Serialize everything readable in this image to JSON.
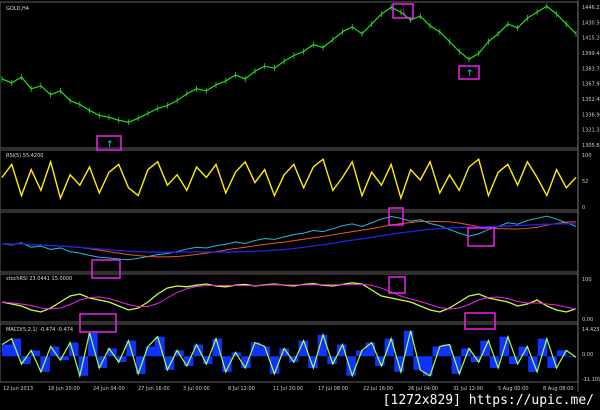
{
  "symbol": "GOLD,H4",
  "watermark": "[1272x829] https://upic.me/",
  "colors": {
    "price": "#22dd22",
    "rsi": "#ffee00",
    "signal_box": "#ee22ee",
    "ma_fast": "#22bbdd",
    "ma_mid": "#ee5522",
    "ma_slow": "#2222ee",
    "stoch_k": "#ccff33",
    "stoch_d": "#ee22ee",
    "macd_hist": "#1133ff",
    "macd_line": "#aaff44"
  },
  "chart_data": [
    {
      "type": "line",
      "title": "GOLD,H4",
      "yticks": [
        "1446.25",
        "1430.50",
        "1415.20",
        "1399.45",
        "1383.70",
        "1367.95",
        "1352.45",
        "1336.90",
        "1321.35",
        "1305.85"
      ],
      "ylim": [
        1305.85,
        1446.25
      ],
      "values": [
        1372,
        1368,
        1374,
        1362,
        1365,
        1356,
        1360,
        1350,
        1346,
        1340,
        1335,
        1333,
        1330,
        1328,
        1332,
        1337,
        1342,
        1345,
        1350,
        1357,
        1362,
        1360,
        1366,
        1370,
        1376,
        1372,
        1380,
        1385,
        1383,
        1390,
        1396,
        1400,
        1407,
        1404,
        1412,
        1420,
        1425,
        1418,
        1428,
        1438,
        1445,
        1440,
        1432,
        1436,
        1426,
        1420,
        1410,
        1400,
        1392,
        1398,
        1410,
        1418,
        1428,
        1424,
        1434,
        1440,
        1446,
        1438,
        1428,
        1418
      ]
    },
    {
      "type": "line",
      "title": "RSI(5) 55.4200",
      "yticks": [
        "100",
        "52",
        "0"
      ],
      "ylim": [
        0,
        100
      ],
      "values": [
        55,
        80,
        20,
        70,
        30,
        85,
        15,
        60,
        40,
        75,
        25,
        65,
        80,
        35,
        20,
        70,
        85,
        40,
        60,
        30,
        75,
        55,
        80,
        25,
        65,
        85,
        45,
        70,
        20,
        60,
        80,
        35,
        75,
        90,
        30,
        55,
        85,
        20,
        65,
        40,
        80,
        15,
        70,
        50,
        85,
        25,
        60,
        30,
        75,
        90,
        20,
        65,
        80,
        40,
        85,
        55,
        20,
        70,
        35,
        55
      ]
    },
    {
      "type": "line",
      "yticks": [],
      "values": []
    },
    {
      "type": "line",
      "title": "stochRSI 23.0441 15.0000",
      "yticks": [
        "100",
        "0.00"
      ],
      "ylim": [
        0,
        100
      ],
      "values": [
        40,
        35,
        30,
        20,
        15,
        25,
        40,
        55,
        60,
        50,
        45,
        40,
        30,
        20,
        25,
        40,
        60,
        75,
        80,
        78,
        82,
        85,
        80,
        78,
        82,
        84,
        80,
        83,
        85,
        82,
        80,
        84,
        86,
        82,
        80,
        84,
        88,
        85,
        70,
        55,
        50,
        45,
        40,
        30,
        20,
        15,
        25,
        40,
        55,
        60,
        50,
        45,
        40,
        30,
        35,
        45,
        30,
        20,
        15,
        23
      ]
    },
    {
      "type": "bar",
      "title": "MACD(5,2,1) -0.474 -0.474",
      "yticks": [
        "14.425",
        "0.00",
        "-11.109"
      ],
      "ylim": [
        -11.109,
        14.425
      ],
      "values": [
        6,
        9,
        -4,
        3,
        -8,
        5,
        -2,
        7,
        -10,
        12,
        -6,
        4,
        -3,
        8,
        -9,
        5,
        10,
        -7,
        3,
        -5,
        6,
        -4,
        9,
        -8,
        2,
        -6,
        7,
        5,
        -9,
        4,
        -3,
        8,
        -6,
        11,
        -4,
        6,
        -10,
        3,
        7,
        -5,
        9,
        -8,
        13,
        -7,
        -10,
        5,
        6,
        -9,
        4,
        -3,
        8,
        -6,
        10,
        -4,
        5,
        -8,
        9,
        -6,
        3,
        -0.5
      ]
    }
  ],
  "time_labels": [
    "12 Jun 2013",
    "18 Jun 20:00",
    "24 Jun 04:00",
    "27 Jun 16:00",
    "3 Jul 00:00",
    "8 Jul 12:00",
    "11 Jul 20:00",
    "17 Jul 08:00",
    "22 Jul 16:00",
    "26 Jul 04:00",
    "31 Jul 12:00",
    "5 Aug 00:00",
    "8 Aug 08:00"
  ]
}
